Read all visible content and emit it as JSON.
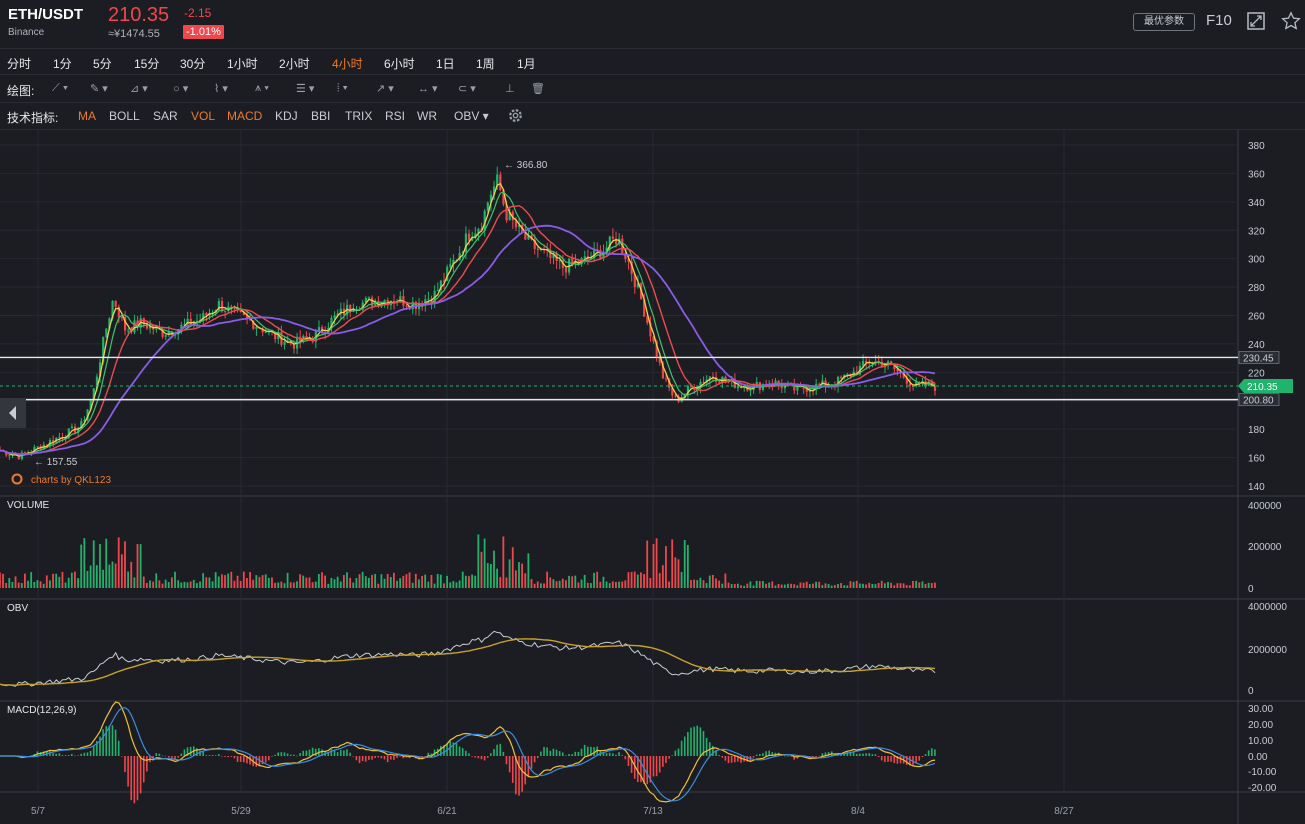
{
  "header": {
    "symbol": "ETH/USDT",
    "exchange": "Binance",
    "price": "210.35",
    "price_cny": "≈¥1474.55",
    "change": "-2.15",
    "change_pct": "-1.01%",
    "best_params_label": "最优参数",
    "f10_label": "F10",
    "fullscreen_icon": "fullscreen-icon",
    "star_icon": "star-icon",
    "down_color": "#f0474c",
    "up_color": "#1fb36c",
    "accent_color": "#ef7a2b"
  },
  "timeframes": [
    {
      "label": "分时"
    },
    {
      "label": "1分"
    },
    {
      "label": "5分"
    },
    {
      "label": "15分"
    },
    {
      "label": "30分"
    },
    {
      "label": "1小时"
    },
    {
      "label": "2小时"
    },
    {
      "label": "4小时",
      "active": true
    },
    {
      "label": "6小时"
    },
    {
      "label": "1日"
    },
    {
      "label": "1周"
    },
    {
      "label": "1月"
    }
  ],
  "drawing": {
    "label": "绘图:",
    "tools": [
      "line-tool-icon",
      "pen-tool-icon",
      "channel-tool-icon",
      "shape-tool-icon",
      "wave-tool-icon",
      "pattern-tool-icon",
      "fib-tool-icon",
      "gann-tool-icon",
      "arrow-tool-icon",
      "measure-tool-icon",
      "annotation-tool-icon",
      "bars-tool-icon",
      "trash-icon"
    ]
  },
  "indicators": {
    "label": "技术指标:",
    "items": [
      {
        "label": "MA",
        "on": true
      },
      {
        "label": "BOLL"
      },
      {
        "label": "SAR"
      },
      {
        "label": "VOL",
        "on": true
      },
      {
        "label": "MACD",
        "on": true
      },
      {
        "label": "KDJ"
      },
      {
        "label": "BBI"
      },
      {
        "label": "TRIX"
      },
      {
        "label": "RSI"
      },
      {
        "label": "WR"
      },
      {
        "label": "OBV ▾"
      }
    ],
    "settings_icon": "gear-icon"
  },
  "chart_data": {
    "type": "candlestick",
    "price_axis_ticks": [
      "380",
      "360",
      "340",
      "320",
      "300",
      "280",
      "260",
      "240",
      "220",
      "200",
      "180",
      "160",
      "140"
    ],
    "price_range": [
      140,
      380
    ],
    "high_marker": "← 366.80",
    "low_marker": "← 157.55",
    "horizontal_lines": [
      {
        "value": 230.45,
        "label": "230.45"
      },
      {
        "value": 200.8,
        "label": "200.80"
      }
    ],
    "current_price": {
      "value": 210.35,
      "label": "210.35"
    },
    "watermark": "charts by QKL123",
    "x_ticks": [
      "5/7",
      "5/29",
      "6/21",
      "7/13",
      "8/4",
      "8/27"
    ],
    "price_path": [
      [
        0,
        165
      ],
      [
        10,
        161
      ],
      [
        20,
        168
      ],
      [
        30,
        175
      ],
      [
        40,
        182
      ],
      [
        46,
        205
      ],
      [
        52,
        248
      ],
      [
        56,
        272
      ],
      [
        62,
        250
      ],
      [
        70,
        255
      ],
      [
        80,
        248
      ],
      [
        90,
        252
      ],
      [
        100,
        258
      ],
      [
        108,
        268
      ],
      [
        115,
        262
      ],
      [
        125,
        255
      ],
      [
        135,
        246
      ],
      [
        145,
        240
      ],
      [
        155,
        245
      ],
      [
        165,
        258
      ],
      [
        175,
        268
      ],
      [
        185,
        270
      ],
      [
        195,
        272
      ],
      [
        205,
        268
      ],
      [
        215,
        275
      ],
      [
        225,
        300
      ],
      [
        232,
        318
      ],
      [
        238,
        325
      ],
      [
        242,
        345
      ],
      [
        246,
        355
      ],
      [
        250,
        332
      ],
      [
        256,
        320
      ],
      [
        262,
        310
      ],
      [
        270,
        302
      ],
      [
        278,
        294
      ],
      [
        288,
        298
      ],
      [
        298,
        306
      ],
      [
        305,
        315
      ],
      [
        310,
        300
      ],
      [
        316,
        275
      ],
      [
        322,
        245
      ],
      [
        328,
        215
      ],
      [
        334,
        200
      ],
      [
        342,
        210
      ],
      [
        352,
        218
      ],
      [
        362,
        212
      ],
      [
        372,
        210
      ],
      [
        382,
        213
      ],
      [
        392,
        208
      ],
      [
        402,
        210
      ],
      [
        412,
        212
      ],
      [
        422,
        220
      ],
      [
        430,
        228
      ],
      [
        438,
        226
      ],
      [
        446,
        218
      ],
      [
        452,
        210
      ],
      [
        458,
        211
      ],
      [
        462,
        210
      ]
    ],
    "panels": [
      {
        "name": "VOLUME",
        "ticks": [
          "400000",
          "200000",
          "0"
        ]
      },
      {
        "name": "OBV",
        "ticks": [
          "4000000",
          "2000000",
          "0"
        ]
      },
      {
        "name": "MACD(12,26,9)",
        "ticks": [
          "30.00",
          "20.00",
          "10.00",
          "0.00",
          "-10.00",
          "-20.00"
        ]
      }
    ]
  }
}
